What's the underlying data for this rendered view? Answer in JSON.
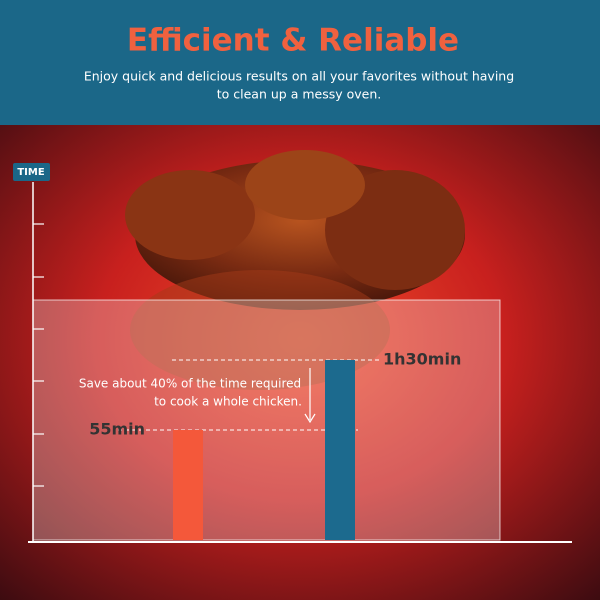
{
  "chart_data": {
    "type": "bar",
    "title": "Efficient & Reliable",
    "subtitle": [
      "Enjoy quick and delicious results on all your favorites without having",
      "to clean up a messy oven."
    ],
    "y_label": "TIME",
    "values": [
      55,
      90
    ],
    "value_labels": [
      "55min",
      "1h30min"
    ],
    "colors": [
      "#f4583a",
      "#1c6a8e"
    ],
    "ylim": [
      0,
      187
    ],
    "annotation": [
      "Save about 40% of the time required",
      "to cook a whole chicken."
    ]
  }
}
